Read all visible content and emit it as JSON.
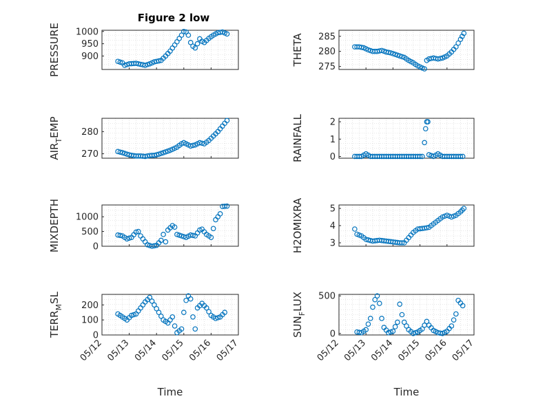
{
  "figure": {
    "title": "Figure 2 low",
    "marker_color": "#0072BD"
  },
  "chart_data": [
    {
      "type": "scatter",
      "ylabel": "PRESSURE",
      "xlabel": "",
      "xlim": [
        "05/12",
        "05/17"
      ],
      "ylim": [
        845,
        1005
      ],
      "yticks": [
        "900",
        "950",
        "1000"
      ],
      "xticks": [],
      "grid": true,
      "marker": "open-circle",
      "points": [
        [
          "05/12 14:00",
          878
        ],
        [
          "05/12 18:00",
          872
        ],
        [
          "05/12 20:00",
          862
        ],
        [
          "05/13 00:00",
          868
        ],
        [
          "05/13 06:00",
          870
        ],
        [
          "05/13 10:00",
          866
        ],
        [
          "05/13 14:00",
          862
        ],
        [
          "05/13 18:00",
          868
        ],
        [
          "05/13 22:00",
          876
        ],
        [
          "05/14 04:00",
          882
        ],
        [
          "05/14 08:00",
          900
        ],
        [
          "05/14 12:00",
          920
        ],
        [
          "05/14 16:00",
          945
        ],
        [
          "05/14 18:00",
          958
        ],
        [
          "05/14 22:00",
          985
        ],
        [
          "05/15 00:00",
          1000
        ],
        [
          "05/15 02:00",
          998
        ],
        [
          "05/15 04:00",
          985
        ],
        [
          "05/15 06:00",
          955
        ],
        [
          "05/15 08:00",
          940
        ],
        [
          "05/15 10:00",
          933
        ],
        [
          "05/15 12:00",
          950
        ],
        [
          "05/15 14:00",
          970
        ],
        [
          "05/15 16:00",
          960
        ],
        [
          "05/15 18:00",
          955
        ],
        [
          "05/15 22:00",
          972
        ],
        [
          "05/16 02:00",
          985
        ],
        [
          "05/16 06:00",
          995
        ],
        [
          "05/16 10:00",
          998
        ],
        [
          "05/16 14:00",
          990
        ]
      ]
    },
    {
      "type": "scatter",
      "ylabel": "THETA",
      "xlabel": "",
      "xlim": [
        "05/12",
        "05/17"
      ],
      "ylim": [
        274,
        287
      ],
      "yticks": [
        "275",
        "280",
        "285"
      ],
      "xticks": [],
      "grid": true,
      "marker": "open-circle",
      "points": [
        [
          "05/12 14:00",
          281.5
        ],
        [
          "05/12 18:00",
          281.5
        ],
        [
          "05/12 22:00",
          281.2
        ],
        [
          "05/13 02:00",
          280.5
        ],
        [
          "05/13 06:00",
          280
        ],
        [
          "05/13 10:00",
          280
        ],
        [
          "05/13 14:00",
          280.3
        ],
        [
          "05/13 18:00",
          279.8
        ],
        [
          "05/13 22:00",
          279.5
        ],
        [
          "05/14 02:00",
          279
        ],
        [
          "05/14 06:00",
          278.5
        ],
        [
          "05/14 10:00",
          278
        ],
        [
          "05/14 14:00",
          277
        ],
        [
          "05/14 18:00",
          276.2
        ],
        [
          "05/14 22:00",
          275.2
        ],
        [
          "05/15 02:00",
          274.5
        ],
        [
          "05/15 04:00",
          274.2
        ],
        [
          "05/15 06:00",
          277
        ],
        [
          "05/15 08:00",
          277.5
        ],
        [
          "05/15 12:00",
          277.8
        ],
        [
          "05/15 16:00",
          277.5
        ],
        [
          "05/15 20:00",
          277.8
        ],
        [
          "05/16 00:00",
          278.5
        ],
        [
          "05/16 04:00",
          279.8
        ],
        [
          "05/16 08:00",
          281.5
        ],
        [
          "05/16 12:00",
          284
        ],
        [
          "05/16 15:00",
          286
        ]
      ]
    },
    {
      "type": "scatter",
      "ylabel": "AIR",
      "ylabel_sub": "T",
      "ylabel_suffix": "EMP",
      "xlabel": "",
      "xlim": [
        "05/12",
        "05/17"
      ],
      "ylim": [
        268,
        286
      ],
      "yticks": [
        "270",
        "280"
      ],
      "xticks": [],
      "grid": true,
      "marker": "open-circle",
      "points": [
        [
          "05/12 14:00",
          271
        ],
        [
          "05/12 18:00",
          270.5
        ],
        [
          "05/12 22:00",
          269.8
        ],
        [
          "05/13 02:00",
          269.3
        ],
        [
          "05/13 06:00",
          269
        ],
        [
          "05/13 10:00",
          269
        ],
        [
          "05/13 14:00",
          268.8
        ],
        [
          "05/13 18:00",
          269.2
        ],
        [
          "05/13 22:00",
          269.3
        ],
        [
          "05/14 02:00",
          269.8
        ],
        [
          "05/14 06:00",
          270.5
        ],
        [
          "05/14 10:00",
          271.2
        ],
        [
          "05/14 14:00",
          272
        ],
        [
          "05/14 18:00",
          273
        ],
        [
          "05/14 22:00",
          274.5
        ],
        [
          "05/15 00:00",
          275
        ],
        [
          "05/15 02:00",
          274.5
        ],
        [
          "05/15 06:00",
          273.5
        ],
        [
          "05/15 10:00",
          274
        ],
        [
          "05/15 14:00",
          275
        ],
        [
          "05/15 18:00",
          274.5
        ],
        [
          "05/15 22:00",
          276
        ],
        [
          "05/16 02:00",
          278
        ],
        [
          "05/16 06:00",
          280
        ],
        [
          "05/16 10:00",
          282.5
        ],
        [
          "05/16 14:00",
          285
        ]
      ]
    },
    {
      "type": "scatter",
      "ylabel": "RAINFALL",
      "xlabel": "",
      "xlim": [
        "05/12",
        "05/17"
      ],
      "ylim": [
        -0.1,
        2.2
      ],
      "yticks": [
        "0",
        "1",
        "2"
      ],
      "xticks": [],
      "grid": true,
      "marker": "open-circle",
      "points": [
        [
          "05/12 14:00",
          0
        ],
        [
          "05/12 20:00",
          0
        ],
        [
          "05/13 00:00",
          0.15
        ],
        [
          "05/13 04:00",
          0
        ],
        [
          "05/13 10:00",
          0
        ],
        [
          "05/13 16:00",
          0
        ],
        [
          "05/13 22:00",
          0
        ],
        [
          "05/14 04:00",
          0
        ],
        [
          "05/14 10:00",
          0
        ],
        [
          "05/14 16:00",
          0
        ],
        [
          "05/14 22:00",
          0
        ],
        [
          "05/15 02:00",
          0
        ],
        [
          "05/15 04:00",
          0.8
        ],
        [
          "05/15 05:00",
          1.6
        ],
        [
          "05/15 06:00",
          2
        ],
        [
          "05/15 07:00",
          2
        ],
        [
          "05/15 08:00",
          0.1
        ],
        [
          "05/15 12:00",
          0
        ],
        [
          "05/15 16:00",
          0.15
        ],
        [
          "05/15 20:00",
          0
        ],
        [
          "05/16 02:00",
          0
        ],
        [
          "05/16 08:00",
          0
        ],
        [
          "05/16 14:00",
          0
        ]
      ]
    },
    {
      "type": "scatter",
      "ylabel": "MIXDEPTH",
      "xlabel": "",
      "xlim": [
        "05/12",
        "05/17"
      ],
      "ylim": [
        0,
        1400
      ],
      "yticks": [
        "0",
        "500",
        "1000"
      ],
      "xticks": [],
      "grid": true,
      "marker": "open-circle",
      "points": [
        [
          "05/12 14:00",
          380
        ],
        [
          "05/12 18:00",
          350
        ],
        [
          "05/12 22:00",
          250
        ],
        [
          "05/13 02:00",
          300
        ],
        [
          "05/13 06:00",
          480
        ],
        [
          "05/13 08:00",
          500
        ],
        [
          "05/13 10:00",
          350
        ],
        [
          "05/13 14:00",
          150
        ],
        [
          "05/13 16:00",
          50
        ],
        [
          "05/13 20:00",
          0
        ],
        [
          "05/14 00:00",
          30
        ],
        [
          "05/14 04:00",
          200
        ],
        [
          "05/14 06:00",
          400
        ],
        [
          "05/14 08:00",
          150
        ],
        [
          "05/14 10:00",
          550
        ],
        [
          "05/14 14:00",
          700
        ],
        [
          "05/14 16:00",
          650
        ],
        [
          "05/14 18:00",
          400
        ],
        [
          "05/14 22:00",
          350
        ],
        [
          "05/15 02:00",
          300
        ],
        [
          "05/15 06:00",
          380
        ],
        [
          "05/15 10:00",
          350
        ],
        [
          "05/15 14:00",
          550
        ],
        [
          "05/15 16:00",
          580
        ],
        [
          "05/15 20:00",
          400
        ],
        [
          "05/16 00:00",
          300
        ],
        [
          "05/16 02:00",
          600
        ],
        [
          "05/16 04:00",
          900
        ],
        [
          "05/16 08:00",
          1100
        ],
        [
          "05/16 10:00",
          1350
        ],
        [
          "05/16 14:00",
          1360
        ]
      ]
    },
    {
      "type": "scatter",
      "ylabel": "H2OMIXRA",
      "xlabel": "",
      "xlim": [
        "05/12",
        "05/17"
      ],
      "ylim": [
        2.8,
        5.2
      ],
      "yticks": [
        "3",
        "4",
        "5"
      ],
      "xticks": [],
      "grid": true,
      "marker": "open-circle",
      "points": [
        [
          "05/12 14:00",
          3.8
        ],
        [
          "05/12 16:00",
          3.5
        ],
        [
          "05/12 20:00",
          3.4
        ],
        [
          "05/13 00:00",
          3.2
        ],
        [
          "05/13 06:00",
          3.1
        ],
        [
          "05/13 12:00",
          3.15
        ],
        [
          "05/13 18:00",
          3.1
        ],
        [
          "05/14 00:00",
          3.05
        ],
        [
          "05/14 06:00",
          3
        ],
        [
          "05/14 10:00",
          3
        ],
        [
          "05/14 14:00",
          3.3
        ],
        [
          "05/14 18:00",
          3.6
        ],
        [
          "05/14 22:00",
          3.8
        ],
        [
          "05/15 04:00",
          3.85
        ],
        [
          "05/15 08:00",
          3.9
        ],
        [
          "05/15 12:00",
          4.1
        ],
        [
          "05/15 16:00",
          4.3
        ],
        [
          "05/15 20:00",
          4.5
        ],
        [
          "05/16 00:00",
          4.6
        ],
        [
          "05/16 04:00",
          4.5
        ],
        [
          "05/16 08:00",
          4.6
        ],
        [
          "05/16 12:00",
          4.8
        ],
        [
          "05/16 15:00",
          5
        ]
      ]
    },
    {
      "type": "scatter",
      "ylabel": "TERR",
      "ylabel_sub": "M",
      "ylabel_suffix": "SL",
      "xlabel": "Time",
      "xlim": [
        "05/12",
        "05/17"
      ],
      "ylim": [
        0,
        270
      ],
      "yticks": [
        "0",
        "100",
        "200"
      ],
      "xticks": [
        "05/12",
        "05/13",
        "05/14",
        "05/15",
        "05/16",
        "05/17"
      ],
      "grid": true,
      "marker": "open-circle",
      "points": [
        [
          "05/12 14:00",
          140
        ],
        [
          "05/12 18:00",
          120
        ],
        [
          "05/12 22:00",
          100
        ],
        [
          "05/13 02:00",
          130
        ],
        [
          "05/13 06:00",
          140
        ],
        [
          "05/13 10:00",
          180
        ],
        [
          "05/13 14:00",
          220
        ],
        [
          "05/13 18:00",
          250
        ],
        [
          "05/13 22:00",
          200
        ],
        [
          "05/14 02:00",
          150
        ],
        [
          "05/14 06:00",
          100
        ],
        [
          "05/14 10:00",
          80
        ],
        [
          "05/14 14:00",
          120
        ],
        [
          "05/14 16:00",
          60
        ],
        [
          "05/14 18:00",
          15
        ],
        [
          "05/14 22:00",
          40
        ],
        [
          "05/15 00:00",
          150
        ],
        [
          "05/15 02:00",
          230
        ],
        [
          "05/15 04:00",
          260
        ],
        [
          "05/15 06:00",
          240
        ],
        [
          "05/15 08:00",
          120
        ],
        [
          "05/15 10:00",
          40
        ],
        [
          "05/15 12:00",
          180
        ],
        [
          "05/15 16:00",
          210
        ],
        [
          "05/15 20:00",
          180
        ],
        [
          "05/16 00:00",
          130
        ],
        [
          "05/16 04:00",
          110
        ],
        [
          "05/16 08:00",
          120
        ],
        [
          "05/16 12:00",
          150
        ]
      ]
    },
    {
      "type": "scatter",
      "ylabel": "SUN",
      "ylabel_sub": "F",
      "ylabel_suffix": "LUX",
      "xlabel": "Time",
      "xlim": [
        "05/12",
        "05/17"
      ],
      "ylim": [
        -20,
        520
      ],
      "yticks": [
        "0",
        "500"
      ],
      "xticks": [
        "05/12",
        "05/13",
        "05/14",
        "05/15",
        "05/16",
        "05/17"
      ],
      "grid": true,
      "marker": "open-circle",
      "points": [
        [
          "05/12 16:00",
          20
        ],
        [
          "05/12 20:00",
          10
        ],
        [
          "05/13 00:00",
          50
        ],
        [
          "05/13 04:00",
          200
        ],
        [
          "05/13 06:00",
          350
        ],
        [
          "05/13 08:00",
          450
        ],
        [
          "05/13 10:00",
          500
        ],
        [
          "05/13 12:00",
          400
        ],
        [
          "05/13 14:00",
          200
        ],
        [
          "05/13 16:00",
          80
        ],
        [
          "05/13 20:00",
          10
        ],
        [
          "05/14 00:00",
          30
        ],
        [
          "05/14 04:00",
          150
        ],
        [
          "05/14 06:00",
          390
        ],
        [
          "05/14 08:00",
          250
        ],
        [
          "05/14 10:00",
          150
        ],
        [
          "05/14 14:00",
          50
        ],
        [
          "05/14 18:00",
          0
        ],
        [
          "05/14 22:00",
          20
        ],
        [
          "05/15 02:00",
          60
        ],
        [
          "05/15 06:00",
          160
        ],
        [
          "05/15 08:00",
          110
        ],
        [
          "05/15 12:00",
          40
        ],
        [
          "05/15 16:00",
          10
        ],
        [
          "05/15 20:00",
          0
        ],
        [
          "05/16 00:00",
          30
        ],
        [
          "05/16 04:00",
          100
        ],
        [
          "05/16 08:00",
          260
        ],
        [
          "05/16 10:00",
          440
        ],
        [
          "05/16 14:00",
          370
        ]
      ]
    }
  ]
}
